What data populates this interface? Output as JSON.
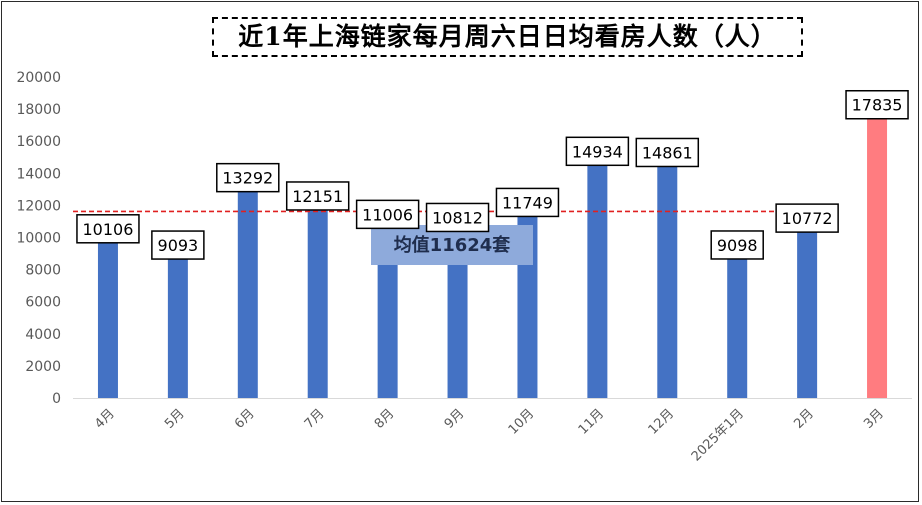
{
  "chart_data": {
    "type": "bar",
    "title": "近1年上海链家每月周六日日均看房人数（人）",
    "categories": [
      "4月",
      "5月",
      "6月",
      "7月",
      "8月",
      "9月",
      "10月",
      "11月",
      "12月",
      "2025年1月",
      "2月",
      "3月"
    ],
    "values": [
      10106,
      9093,
      13292,
      12151,
      11006,
      10812,
      11749,
      14934,
      14861,
      9098,
      10772,
      17835
    ],
    "data_labels": [
      "10106",
      "9093",
      "13292",
      "12151",
      "11006",
      "10812",
      "11749",
      "14934",
      "14861",
      "9098",
      "10772",
      "17835"
    ],
    "y_ticks": [
      "0",
      "2000",
      "4000",
      "6000",
      "8000",
      "10000",
      "12000",
      "14000",
      "16000",
      "18000",
      "20000"
    ],
    "ylim": [
      0,
      20000
    ],
    "xlabel": "",
    "ylabel": "",
    "grid": false,
    "average": {
      "value": 11624,
      "label": "均值11624套",
      "style": "dashed red arrow"
    },
    "colors": {
      "bar": "#4472c4",
      "highlight_bar": "#ff7c80",
      "average_line": "#e02020",
      "average_box": "#8eaadb"
    },
    "highlight_index": 11
  }
}
